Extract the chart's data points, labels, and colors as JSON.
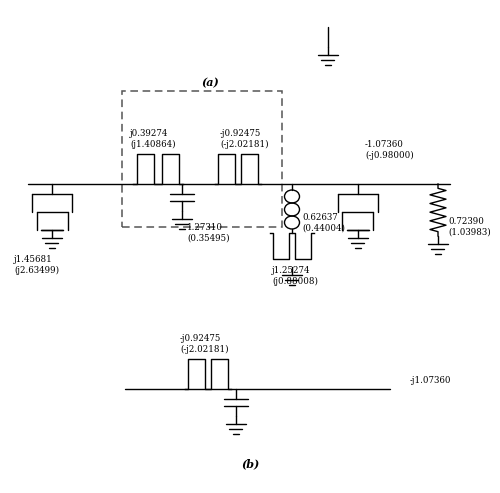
{
  "background": "#ffffff",
  "line_color": "#000000",
  "line_width": 1.0,
  "label_a": "(a)",
  "label_b": "(b)",
  "labels": {
    "j039274": "j0.39274\n(j1.40864)",
    "neg_j092475_a": "-j0.92475\n(-j2.02181)",
    "l127310": "1.27310\n(0.35495)",
    "j145681": "j1.45681\n(j2.63499)",
    "l062637": "0.62637\n(0.44004)",
    "j125274": "j1.25274\n(j0.88008)",
    "neg107360": "-1.07360\n(-j0.98000)",
    "r072390": "0.72390\n(1.03983)",
    "neg_j092475_b": "-j0.92475\n(-j2.02181)",
    "neg_j107360_b": "-j1.07360"
  }
}
